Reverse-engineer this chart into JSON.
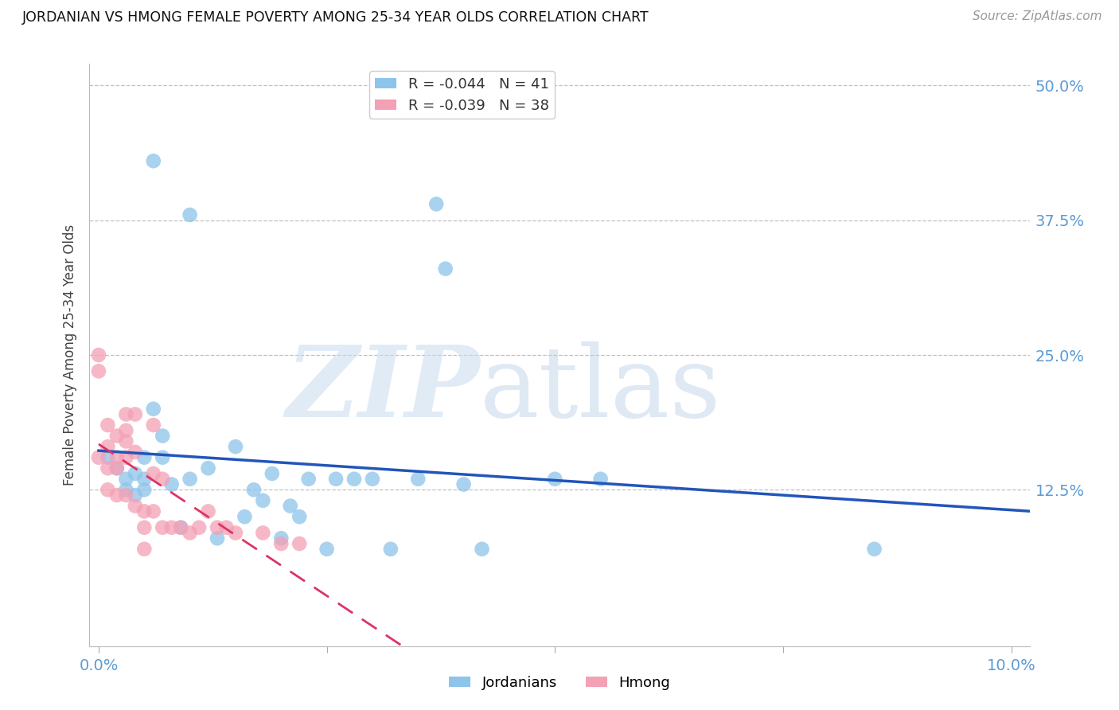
{
  "title": "JORDANIAN VS HMONG FEMALE POVERTY AMONG 25-34 YEAR OLDS CORRELATION CHART",
  "source": "Source: ZipAtlas.com",
  "ylabel_label": "Female Poverty Among 25-34 Year Olds",
  "xlim": [
    -0.001,
    0.102
  ],
  "ylim": [
    -0.02,
    0.52
  ],
  "xtick_positions": [
    0.0,
    0.025,
    0.05,
    0.075,
    0.1
  ],
  "xtick_labels": [
    "0.0%",
    "",
    "",
    "",
    "10.0%"
  ],
  "ytick_labels": [
    "12.5%",
    "25.0%",
    "37.5%",
    "50.0%"
  ],
  "yticks": [
    0.125,
    0.25,
    0.375,
    0.5
  ],
  "jordanian_color": "#8DC4EA",
  "hmong_color": "#F4A0B5",
  "trend_jordan_color": "#2255BB",
  "trend_hmong_color": "#DD3366",
  "background_color": "#FFFFFF",
  "legend_r_jordan": "R = -0.044",
  "legend_n_jordan": "N = 41",
  "legend_r_hmong": "R = -0.039",
  "legend_n_hmong": "N = 38",
  "watermark_zip": "ZIP",
  "watermark_atlas": "atlas",
  "jordanian_x": [
    0.001,
    0.002,
    0.003,
    0.003,
    0.004,
    0.004,
    0.005,
    0.005,
    0.005,
    0.006,
    0.006,
    0.007,
    0.007,
    0.008,
    0.009,
    0.01,
    0.01,
    0.012,
    0.013,
    0.015,
    0.016,
    0.017,
    0.018,
    0.019,
    0.02,
    0.021,
    0.022,
    0.023,
    0.025,
    0.026,
    0.028,
    0.03,
    0.032,
    0.035,
    0.037,
    0.038,
    0.04,
    0.042,
    0.05,
    0.055,
    0.085
  ],
  "jordanian_y": [
    0.155,
    0.145,
    0.135,
    0.125,
    0.14,
    0.12,
    0.155,
    0.135,
    0.125,
    0.2,
    0.43,
    0.155,
    0.175,
    0.13,
    0.09,
    0.38,
    0.135,
    0.145,
    0.08,
    0.165,
    0.1,
    0.125,
    0.115,
    0.14,
    0.08,
    0.11,
    0.1,
    0.135,
    0.07,
    0.135,
    0.135,
    0.135,
    0.07,
    0.135,
    0.39,
    0.33,
    0.13,
    0.07,
    0.135,
    0.135,
    0.07
  ],
  "hmong_x": [
    0.0,
    0.0,
    0.0,
    0.001,
    0.001,
    0.001,
    0.001,
    0.002,
    0.002,
    0.002,
    0.002,
    0.003,
    0.003,
    0.003,
    0.003,
    0.003,
    0.004,
    0.004,
    0.004,
    0.005,
    0.005,
    0.005,
    0.006,
    0.006,
    0.006,
    0.007,
    0.007,
    0.008,
    0.009,
    0.01,
    0.011,
    0.012,
    0.013,
    0.014,
    0.015,
    0.018,
    0.02,
    0.022
  ],
  "hmong_y": [
    0.25,
    0.235,
    0.155,
    0.185,
    0.165,
    0.145,
    0.125,
    0.175,
    0.155,
    0.145,
    0.12,
    0.195,
    0.18,
    0.17,
    0.155,
    0.12,
    0.195,
    0.16,
    0.11,
    0.105,
    0.09,
    0.07,
    0.185,
    0.14,
    0.105,
    0.135,
    0.09,
    0.09,
    0.09,
    0.085,
    0.09,
    0.105,
    0.09,
    0.09,
    0.085,
    0.085,
    0.075,
    0.075
  ]
}
